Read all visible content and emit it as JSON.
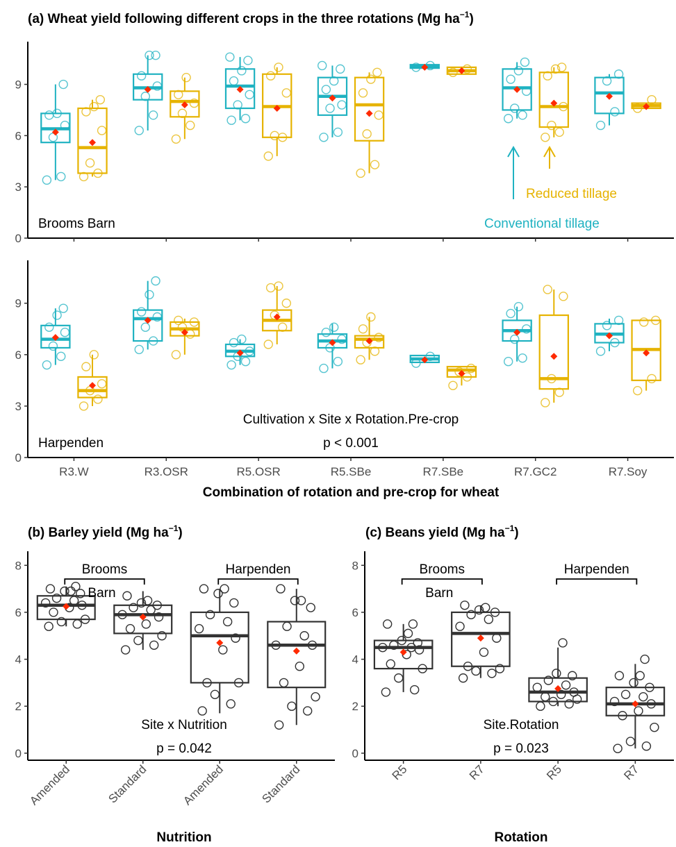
{
  "colors": {
    "conventional": "#1fb2c1",
    "reduced": "#e6b300",
    "mean": "#ff2a00",
    "plain": "#333333"
  },
  "chart_data": [
    {
      "id": "a-top",
      "type": "box",
      "title": "(a) Wheat yield following different crops in the three rotations (Mg ha",
      "title_sup": "−1",
      "title_close": ")",
      "site_label": "Brooms Barn",
      "annotations": {
        "conventional": "Conventional tillage",
        "reduced": "Reduced tillage"
      },
      "ylim": [
        0,
        11.5
      ],
      "yticks": [
        0,
        3,
        6,
        9
      ],
      "categories": [
        "R3.W",
        "R3.OSR",
        "R5.OSR",
        "R5.SBe",
        "R7.SBe",
        "R7.GC2",
        "R7.Soy"
      ],
      "series": [
        {
          "color": "conventional",
          "boxes": [
            {
              "q1": 5.6,
              "median": 6.4,
              "q3": 7.3,
              "lo": 3.4,
              "hi": 9.0,
              "mean": 6.2,
              "pts": [
                3.4,
                3.6,
                5.9,
                6.6,
                7.2,
                7.3,
                9.0
              ]
            },
            {
              "q1": 8.1,
              "median": 8.8,
              "q3": 9.6,
              "lo": 6.3,
              "hi": 10.7,
              "mean": 8.7,
              "pts": [
                6.3,
                7.2,
                8.3,
                8.9,
                9.5,
                10.7,
                10.7
              ]
            },
            {
              "q1": 7.6,
              "median": 8.9,
              "q3": 9.9,
              "lo": 6.9,
              "hi": 10.6,
              "mean": 8.7,
              "pts": [
                6.9,
                7.0,
                7.8,
                8.4,
                9.2,
                9.8,
                10.4,
                10.6
              ]
            },
            {
              "q1": 7.2,
              "median": 8.3,
              "q3": 9.4,
              "lo": 5.9,
              "hi": 10.1,
              "mean": 8.2,
              "pts": [
                5.9,
                6.2,
                7.6,
                7.8,
                8.7,
                9.2,
                9.9,
                10.1
              ]
            },
            {
              "q1": 9.95,
              "median": 10.05,
              "q3": 10.15,
              "lo": 9.95,
              "hi": 10.15,
              "mean": 10.0,
              "pts": [
                10.0,
                10.1
              ]
            },
            {
              "q1": 7.5,
              "median": 8.8,
              "q3": 9.9,
              "lo": 7.0,
              "hi": 10.3,
              "mean": 8.7,
              "pts": [
                7.0,
                7.2,
                7.6,
                8.6,
                9.3,
                9.8,
                10.3
              ]
            },
            {
              "q1": 7.3,
              "median": 8.5,
              "q3": 9.4,
              "lo": 6.6,
              "hi": 9.6,
              "mean": 8.3,
              "pts": [
                6.6,
                7.4,
                9.2,
                9.6
              ]
            }
          ]
        },
        {
          "color": "reduced",
          "boxes": [
            {
              "q1": 3.8,
              "median": 5.3,
              "q3": 7.6,
              "lo": 3.6,
              "hi": 8.1,
              "mean": 5.6,
              "pts": [
                3.6,
                3.8,
                4.4,
                6.3,
                7.4,
                7.7,
                8.1
              ]
            },
            {
              "q1": 7.1,
              "median": 8.0,
              "q3": 8.6,
              "lo": 5.8,
              "hi": 9.4,
              "mean": 7.8,
              "pts": [
                5.8,
                6.6,
                7.3,
                7.9,
                8.4,
                9.4
              ]
            },
            {
              "q1": 5.9,
              "median": 7.7,
              "q3": 9.6,
              "lo": 4.8,
              "hi": 10.0,
              "mean": 7.6,
              "pts": [
                4.8,
                5.9,
                6.0,
                8.5,
                9.5,
                10.0
              ]
            },
            {
              "q1": 5.7,
              "median": 7.8,
              "q3": 9.4,
              "lo": 3.8,
              "hi": 9.7,
              "mean": 7.3,
              "pts": [
                3.8,
                4.3,
                6.1,
                7.2,
                8.5,
                9.3,
                9.7
              ]
            },
            {
              "q1": 9.6,
              "median": 9.8,
              "q3": 10.0,
              "lo": 9.6,
              "hi": 10.0,
              "mean": 9.8,
              "pts": [
                9.7,
                9.9
              ]
            },
            {
              "q1": 6.5,
              "median": 7.7,
              "q3": 9.7,
              "lo": 5.9,
              "hi": 10.0,
              "mean": 7.9,
              "pts": [
                5.9,
                6.2,
                6.6,
                7.7,
                9.5,
                9.9,
                10.0
              ]
            },
            {
              "q1": 7.6,
              "median": 7.75,
              "q3": 7.9,
              "lo": 7.6,
              "hi": 7.9,
              "mean": 7.7,
              "pts": [
                7.6,
                8.1
              ]
            }
          ]
        }
      ]
    },
    {
      "id": "a-bottom",
      "type": "box",
      "site_label": "Harpenden",
      "test_label": "Cultivation x Site x Rotation.Pre-crop",
      "p_label": "p < 0.001",
      "xlabel": "Combination of rotation and pre-crop for wheat",
      "ylim": [
        0,
        11.5
      ],
      "yticks": [
        0,
        3,
        6,
        9
      ],
      "categories": [
        "R3.W",
        "R3.OSR",
        "R5.OSR",
        "R5.SBe",
        "R7.SBe",
        "R7.GC2",
        "R7.Soy"
      ],
      "series": [
        {
          "color": "conventional",
          "boxes": [
            {
              "q1": 6.4,
              "median": 6.9,
              "q3": 7.7,
              "lo": 5.4,
              "hi": 8.7,
              "mean": 7.0,
              "pts": [
                5.4,
                5.9,
                6.5,
                7.3,
                7.6,
                8.3,
                8.7
              ]
            },
            {
              "q1": 6.8,
              "median": 8.1,
              "q3": 8.6,
              "lo": 6.3,
              "hi": 10.3,
              "mean": 8.0,
              "pts": [
                6.3,
                6.8,
                7.6,
                8.2,
                8.5,
                9.5,
                10.3
              ]
            },
            {
              "q1": 5.9,
              "median": 6.2,
              "q3": 6.6,
              "lo": 5.4,
              "hi": 6.9,
              "mean": 6.1,
              "pts": [
                5.4,
                5.6,
                5.9,
                6.2,
                6.7,
                6.9
              ]
            },
            {
              "q1": 6.4,
              "median": 6.8,
              "q3": 7.2,
              "lo": 5.2,
              "hi": 7.8,
              "mean": 6.7,
              "pts": [
                5.2,
                5.6,
                6.4,
                6.9,
                7.3,
                7.6
              ]
            },
            {
              "q1": 5.55,
              "median": 5.75,
              "q3": 5.95,
              "lo": 5.55,
              "hi": 5.95,
              "mean": 5.7,
              "pts": [
                5.5,
                5.9
              ]
            },
            {
              "q1": 6.8,
              "median": 7.4,
              "q3": 8.0,
              "lo": 5.6,
              "hi": 8.8,
              "mean": 7.3,
              "pts": [
                5.6,
                5.8,
                6.9,
                7.5,
                8.4,
                8.8
              ]
            },
            {
              "q1": 6.7,
              "median": 7.2,
              "q3": 7.8,
              "lo": 6.2,
              "hi": 8.1,
              "mean": 7.1,
              "pts": [
                6.2,
                6.7,
                7.7,
                8.0
              ]
            }
          ]
        },
        {
          "color": "reduced",
          "boxes": [
            {
              "q1": 3.5,
              "median": 3.9,
              "q3": 4.7,
              "lo": 3.0,
              "hi": 6.0,
              "mean": 4.2,
              "pts": [
                3.0,
                3.4,
                3.9,
                4.3,
                5.3,
                6.0
              ]
            },
            {
              "q1": 7.1,
              "median": 7.5,
              "q3": 7.9,
              "lo": 6.0,
              "hi": 8.1,
              "mean": 7.3,
              "pts": [
                6.0,
                7.2,
                7.6,
                7.9,
                8.0
              ]
            },
            {
              "q1": 7.4,
              "median": 8.0,
              "q3": 8.6,
              "lo": 6.6,
              "hi": 10.0,
              "mean": 8.2,
              "pts": [
                6.6,
                7.6,
                8.3,
                9.0,
                9.9,
                10.0
              ]
            },
            {
              "q1": 6.4,
              "median": 6.9,
              "q3": 7.1,
              "lo": 5.7,
              "hi": 8.2,
              "mean": 6.8,
              "pts": [
                5.7,
                6.2,
                6.7,
                7.0,
                7.5,
                8.2
              ]
            },
            {
              "q1": 4.7,
              "median": 5.1,
              "q3": 5.3,
              "lo": 4.2,
              "hi": 5.3,
              "mean": 4.9,
              "pts": [
                4.2,
                4.7,
                5.0,
                5.2
              ]
            },
            {
              "q1": 4.0,
              "median": 4.6,
              "q3": 8.3,
              "lo": 3.2,
              "hi": 9.8,
              "mean": 5.9,
              "pts": [
                3.2,
                3.8,
                4.6,
                9.4,
                9.8
              ]
            },
            {
              "q1": 4.5,
              "median": 6.3,
              "q3": 8.0,
              "lo": 3.9,
              "hi": 8.0,
              "mean": 6.1,
              "pts": [
                3.9,
                4.6,
                7.9,
                8.0
              ]
            }
          ]
        }
      ]
    },
    {
      "id": "b",
      "type": "box",
      "title": "(b) Barley yield (Mg ha",
      "title_sup": "−1",
      "title_close": ")",
      "xlabel": "Nutrition",
      "test_label": "Site x Nutrition",
      "p_label": "p = 0.042",
      "site_labels": [
        {
          "line1": "Brooms",
          "line2": "Barn",
          "from": 0,
          "to": 1
        },
        {
          "line1": "Harpenden",
          "from": 2,
          "to": 3
        }
      ],
      "ylim": [
        -0.3,
        8.6
      ],
      "yticks": [
        0,
        2,
        4,
        6,
        8
      ],
      "categories": [
        "Amended",
        "Standard",
        "Amended",
        "Standard"
      ],
      "boxes": [
        {
          "q1": 5.7,
          "median": 6.3,
          "q3": 6.7,
          "lo": 5.4,
          "hi": 7.1,
          "mean": 6.25,
          "pts": [
            5.4,
            5.5,
            5.6,
            5.7,
            6.0,
            6.2,
            6.3,
            6.4,
            6.5,
            6.6,
            6.8,
            6.9,
            6.9,
            7.0,
            7.1
          ]
        },
        {
          "q1": 5.1,
          "median": 5.9,
          "q3": 6.3,
          "lo": 4.4,
          "hi": 6.9,
          "mean": 5.8,
          "pts": [
            4.4,
            4.6,
            4.8,
            5.0,
            5.3,
            5.5,
            5.8,
            5.9,
            6.1,
            6.2,
            6.3,
            6.4,
            6.5,
            6.7
          ]
        },
        {
          "q1": 3.0,
          "median": 5.0,
          "q3": 6.0,
          "lo": 1.7,
          "hi": 7.0,
          "mean": 4.7,
          "pts": [
            1.8,
            2.1,
            2.5,
            3.0,
            3.0,
            4.4,
            4.9,
            5.3,
            5.6,
            5.9,
            6.4,
            6.8,
            7.0,
            7.0
          ]
        },
        {
          "q1": 2.8,
          "median": 4.6,
          "q3": 5.6,
          "lo": 1.2,
          "hi": 7.0,
          "mean": 4.35,
          "pts": [
            1.2,
            1.8,
            2.0,
            2.4,
            3.0,
            3.7,
            4.6,
            4.6,
            5.0,
            5.4,
            6.2,
            6.5,
            6.5,
            7.0
          ]
        }
      ]
    },
    {
      "id": "c",
      "type": "box",
      "title": "(c) Beans yield (Mg ha",
      "title_sup": "−1",
      "title_close": ")",
      "xlabel": "Rotation",
      "test_label": "Site.Rotation",
      "p_label": "p = 0.023",
      "site_labels": [
        {
          "line1": "Brooms",
          "line2": "Barn",
          "from": 0,
          "to": 1
        },
        {
          "line1": "Harpenden",
          "from": 2,
          "to": 3
        }
      ],
      "ylim": [
        -0.3,
        8.6
      ],
      "yticks": [
        0,
        2,
        4,
        6,
        8
      ],
      "categories": [
        "R5",
        "R7",
        "R5",
        "R7"
      ],
      "boxes": [
        {
          "q1": 3.6,
          "median": 4.5,
          "q3": 4.8,
          "lo": 2.6,
          "hi": 5.5,
          "mean": 4.3,
          "pts": [
            2.6,
            2.7,
            3.2,
            3.6,
            3.8,
            4.2,
            4.4,
            4.5,
            4.5,
            4.6,
            4.7,
            4.8,
            5.1,
            5.5,
            5.5
          ]
        },
        {
          "q1": 3.7,
          "median": 5.1,
          "q3": 6.0,
          "lo": 3.2,
          "hi": 6.3,
          "mean": 4.9,
          "pts": [
            3.2,
            3.4,
            3.5,
            3.6,
            3.7,
            4.3,
            4.9,
            5.4,
            5.7,
            5.9,
            6.0,
            6.1,
            6.2,
            6.3
          ]
        },
        {
          "q1": 2.2,
          "median": 2.6,
          "q3": 3.2,
          "lo": 2.0,
          "hi": 4.5,
          "mean": 2.75,
          "pts": [
            2.0,
            2.1,
            2.2,
            2.3,
            2.4,
            2.5,
            2.6,
            2.8,
            2.9,
            3.1,
            3.3,
            3.4,
            4.7
          ]
        },
        {
          "q1": 1.6,
          "median": 2.1,
          "q3": 2.8,
          "lo": 0.2,
          "hi": 3.8,
          "mean": 2.1,
          "pts": [
            0.2,
            0.3,
            0.5,
            1.1,
            1.6,
            1.8,
            2.1,
            2.2,
            2.4,
            2.5,
            2.8,
            3.0,
            3.3,
            3.3,
            4.0
          ]
        }
      ]
    }
  ]
}
